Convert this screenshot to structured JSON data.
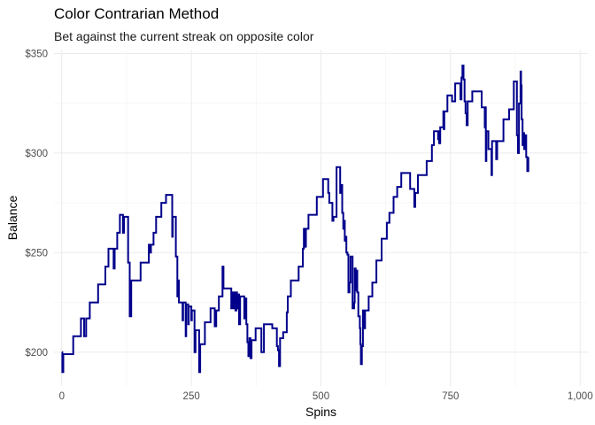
{
  "chart_data": {
    "type": "line",
    "title": "Color Contrarian Method",
    "subtitle": "Bet against the current streak on opposite color",
    "xlabel": "Spins",
    "ylabel": "Balance",
    "xlim": [
      -15,
      1015
    ],
    "ylim": [
      183,
      352
    ],
    "x_ticks": [
      0,
      250,
      500,
      750,
      1000
    ],
    "x_tick_labels": [
      "0",
      "250",
      "500",
      "750",
      "1,000"
    ],
    "y_ticks": [
      200,
      250,
      300,
      350
    ],
    "y_tick_labels": [
      "$200",
      "$250",
      "$300",
      "$350"
    ],
    "grid": true,
    "legend": "none",
    "series": [
      {
        "color": "#00008B",
        "points": [
          [
            0,
            200
          ],
          [
            1,
            190
          ],
          [
            3,
            199
          ],
          [
            20,
            199
          ],
          [
            22,
            208
          ],
          [
            35,
            208
          ],
          [
            37,
            217
          ],
          [
            42,
            217
          ],
          [
            43,
            208
          ],
          [
            47,
            217
          ],
          [
            52,
            217
          ],
          [
            54,
            225
          ],
          [
            68,
            225
          ],
          [
            70,
            234
          ],
          [
            82,
            234
          ],
          [
            84,
            243
          ],
          [
            88,
            243
          ],
          [
            90,
            252
          ],
          [
            98,
            252
          ],
          [
            100,
            242
          ],
          [
            102,
            252
          ],
          [
            105,
            252
          ],
          [
            107,
            260
          ],
          [
            110,
            260
          ],
          [
            112,
            269
          ],
          [
            117,
            269
          ],
          [
            118,
            260
          ],
          [
            120,
            268
          ],
          [
            125,
            268
          ],
          [
            128,
            245
          ],
          [
            131,
            218
          ],
          [
            134,
            236
          ],
          [
            150,
            236
          ],
          [
            152,
            245
          ],
          [
            166,
            245
          ],
          [
            168,
            254
          ],
          [
            170,
            250
          ],
          [
            172,
            254
          ],
          [
            175,
            254
          ],
          [
            177,
            260
          ],
          [
            180,
            260
          ],
          [
            182,
            268
          ],
          [
            190,
            268
          ],
          [
            192,
            275
          ],
          [
            199,
            275
          ],
          [
            201,
            279
          ],
          [
            211,
            279
          ],
          [
            213,
            258
          ],
          [
            214,
            268
          ],
          [
            218,
            268
          ],
          [
            220,
            248
          ],
          [
            223,
            228
          ],
          [
            225,
            236
          ],
          [
            226,
            225
          ],
          [
            232,
            225
          ],
          [
            233,
            216
          ],
          [
            234,
            225
          ],
          [
            238,
            225
          ],
          [
            239,
            208
          ],
          [
            240,
            224
          ],
          [
            243,
            224
          ],
          [
            244,
            214
          ],
          [
            245,
            223
          ],
          [
            249,
            223
          ],
          [
            250,
            216
          ],
          [
            251,
            221
          ],
          [
            255,
            221
          ],
          [
            256,
            200
          ],
          [
            258,
            211
          ],
          [
            263,
            211
          ],
          [
            265,
            190
          ],
          [
            267,
            204
          ],
          [
            274,
            204
          ],
          [
            276,
            215
          ],
          [
            285,
            215
          ],
          [
            287,
            222
          ],
          [
            293,
            222
          ],
          [
            295,
            213
          ],
          [
            298,
            221
          ],
          [
            301,
            221
          ],
          [
            303,
            228
          ],
          [
            308,
            228
          ],
          [
            310,
            243
          ],
          [
            312,
            232
          ],
          [
            325,
            232
          ],
          [
            327,
            222
          ],
          [
            329,
            230
          ],
          [
            331,
            222
          ],
          [
            333,
            230
          ],
          [
            335,
            221
          ],
          [
            337,
            230
          ],
          [
            338,
            222
          ],
          [
            340,
            229
          ],
          [
            342,
            214
          ],
          [
            344,
            228
          ],
          [
            350,
            228
          ],
          [
            352,
            217
          ],
          [
            354,
            227
          ],
          [
            356,
            214
          ],
          [
            358,
            205
          ],
          [
            360,
            198
          ],
          [
            362,
            207
          ],
          [
            364,
            197
          ],
          [
            366,
            206
          ],
          [
            372,
            206
          ],
          [
            374,
            212
          ],
          [
            383,
            212
          ],
          [
            385,
            200
          ],
          [
            388,
            200
          ],
          [
            390,
            214
          ],
          [
            404,
            214
          ],
          [
            406,
            212
          ],
          [
            413,
            212
          ],
          [
            415,
            203
          ],
          [
            417,
            201
          ],
          [
            419,
            193
          ],
          [
            421,
            207
          ],
          [
            425,
            207
          ],
          [
            427,
            210
          ],
          [
            432,
            210
          ],
          [
            434,
            220
          ],
          [
            436,
            228
          ],
          [
            440,
            228
          ],
          [
            442,
            236
          ],
          [
            455,
            236
          ],
          [
            457,
            243
          ],
          [
            463,
            243
          ],
          [
            465,
            252
          ],
          [
            467,
            262
          ],
          [
            469,
            253
          ],
          [
            471,
            262
          ],
          [
            474,
            262
          ],
          [
            476,
            269
          ],
          [
            490,
            269
          ],
          [
            492,
            278
          ],
          [
            502,
            278
          ],
          [
            504,
            287
          ],
          [
            512,
            287
          ],
          [
            514,
            280
          ],
          [
            516,
            275
          ],
          [
            520,
            275
          ],
          [
            522,
            266
          ],
          [
            524,
            268
          ],
          [
            527,
            268
          ],
          [
            530,
            293
          ],
          [
            535,
            293
          ],
          [
            537,
            280
          ],
          [
            539,
            284
          ],
          [
            541,
            270
          ],
          [
            543,
            262
          ],
          [
            544,
            266
          ],
          [
            546,
            256
          ],
          [
            547,
            258
          ],
          [
            549,
            250
          ],
          [
            551,
            249
          ],
          [
            553,
            230
          ],
          [
            555,
            235
          ],
          [
            557,
            248
          ],
          [
            559,
            248
          ],
          [
            561,
            222
          ],
          [
            564,
            225
          ],
          [
            565,
            242
          ],
          [
            567,
            231
          ],
          [
            569,
            241
          ],
          [
            570,
            230
          ],
          [
            572,
            218
          ],
          [
            575,
            212
          ],
          [
            576,
            204
          ],
          [
            577,
            194
          ],
          [
            579,
            203
          ],
          [
            581,
            221
          ],
          [
            583,
            212
          ],
          [
            585,
            221
          ],
          [
            590,
            221
          ],
          [
            592,
            228
          ],
          [
            597,
            228
          ],
          [
            599,
            235
          ],
          [
            605,
            235
          ],
          [
            607,
            246
          ],
          [
            615,
            246
          ],
          [
            617,
            257
          ],
          [
            625,
            257
          ],
          [
            627,
            265
          ],
          [
            630,
            265
          ],
          [
            632,
            270
          ],
          [
            638,
            270
          ],
          [
            640,
            278
          ],
          [
            645,
            278
          ],
          [
            647,
            283
          ],
          [
            653,
            283
          ],
          [
            655,
            290
          ],
          [
            670,
            290
          ],
          [
            672,
            282
          ],
          [
            678,
            282
          ],
          [
            680,
            273
          ],
          [
            682,
            280
          ],
          [
            685,
            280
          ],
          [
            687,
            289
          ],
          [
            702,
            289
          ],
          [
            704,
            296
          ],
          [
            712,
            296
          ],
          [
            714,
            304
          ],
          [
            716,
            304
          ],
          [
            718,
            311
          ],
          [
            724,
            311
          ],
          [
            726,
            307
          ],
          [
            727,
            311
          ],
          [
            728,
            305
          ],
          [
            730,
            313
          ],
          [
            734,
            313
          ],
          [
            736,
            321
          ],
          [
            737,
            312
          ],
          [
            738,
            321
          ],
          [
            742,
            321
          ],
          [
            744,
            329
          ],
          [
            751,
            329
          ],
          [
            753,
            326
          ],
          [
            757,
            326
          ],
          [
            759,
            335
          ],
          [
            767,
            335
          ],
          [
            769,
            327
          ],
          [
            771,
            338
          ],
          [
            773,
            344
          ],
          [
            775,
            337
          ],
          [
            777,
            326
          ],
          [
            779,
            320
          ],
          [
            781,
            314
          ],
          [
            783,
            326
          ],
          [
            790,
            326
          ],
          [
            792,
            331
          ],
          [
            808,
            331
          ],
          [
            810,
            323
          ],
          [
            815,
            323
          ],
          [
            816,
            313
          ],
          [
            817,
            323
          ],
          [
            818,
            296
          ],
          [
            819,
            311
          ],
          [
            821,
            311
          ],
          [
            823,
            302
          ],
          [
            827,
            302
          ],
          [
            829,
            289
          ],
          [
            830,
            306
          ],
          [
            836,
            306
          ],
          [
            838,
            297
          ],
          [
            840,
            306
          ],
          [
            850,
            306
          ],
          [
            852,
            317
          ],
          [
            861,
            317
          ],
          [
            863,
            322
          ],
          [
            870,
            322
          ],
          [
            872,
            336
          ],
          [
            875,
            336
          ],
          [
            878,
            309
          ],
          [
            880,
            300
          ],
          [
            882,
            325
          ],
          [
            885,
            341
          ],
          [
            886,
            334
          ],
          [
            887,
            317
          ],
          [
            889,
            304
          ],
          [
            891,
            310
          ],
          [
            892,
            302
          ],
          [
            894,
            309
          ],
          [
            896,
            298
          ],
          [
            898,
            291
          ],
          [
            900,
            298
          ]
        ]
      }
    ]
  }
}
